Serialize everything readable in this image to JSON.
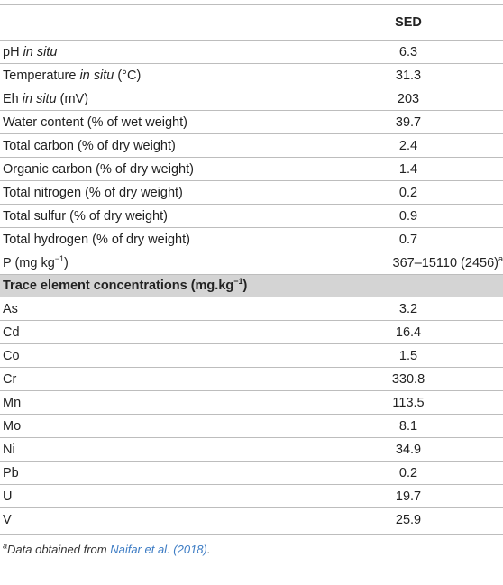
{
  "header": {
    "column": "SED"
  },
  "rows": [
    {
      "pre": "pH ",
      "ital": "in situ",
      "post": "",
      "value": "6.3"
    },
    {
      "pre": "Temperature ",
      "ital": "in situ",
      "post": " (°C)",
      "value": "31.3"
    },
    {
      "pre": "Eh ",
      "ital": "in situ",
      "post": " (mV)",
      "value": "203"
    },
    {
      "label": "Water content (% of wet weight)",
      "value": "39.7"
    },
    {
      "label": "Total carbon (% of dry weight)",
      "value": "2.4"
    },
    {
      "label": "Organic carbon (% of dry weight)",
      "value": "1.4"
    },
    {
      "label": "Total nitrogen (% of dry weight)",
      "value": "0.2"
    },
    {
      "label": "Total sulfur (% of dry weight)",
      "value": "0.9"
    },
    {
      "label": "Total hydrogen (% of dry weight)",
      "value": "0.7"
    }
  ],
  "p_row": {
    "label": "P (mg kg",
    "sup": "−1",
    "close": ")",
    "value": "367–15110 (2456)",
    "value_sup": "a"
  },
  "section": {
    "label": "Trace element concentrations (mg.kg",
    "sup": "−1",
    "close": ")"
  },
  "elements": [
    {
      "label": "As",
      "value": "3.2"
    },
    {
      "label": "Cd",
      "value": "16.4"
    },
    {
      "label": "Co",
      "value": "1.5"
    },
    {
      "label": "Cr",
      "value": "330.8"
    },
    {
      "label": "Mn",
      "value": "113.5"
    },
    {
      "label": "Mo",
      "value": "8.1"
    },
    {
      "label": "Ni",
      "value": "34.9"
    },
    {
      "label": "Pb",
      "value": "0.2"
    },
    {
      "label": "U",
      "value": "19.7"
    },
    {
      "label": "V",
      "value": "25.9"
    }
  ],
  "footnote": {
    "mark": "a",
    "text": "Data obtained from ",
    "link": "Naifar et al. (2018)",
    "end": "."
  }
}
